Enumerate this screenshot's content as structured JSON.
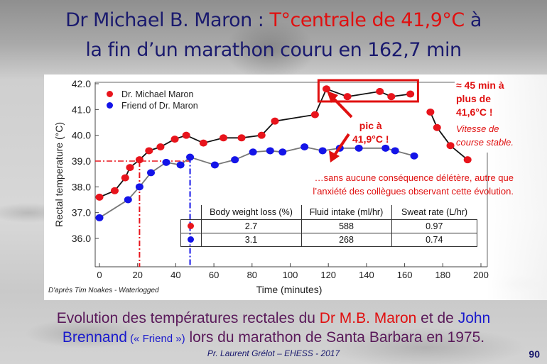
{
  "slide": {
    "title_part1": "Dr Michael B. Maron : ",
    "title_part2_red": "T°centrale de 41,9°C",
    "title_part3": " à",
    "title_line2": "la fin d’un marathon couru en 162,7 min",
    "caption_part1": "Evolution des températures rectales du ",
    "caption_red": "Dr M.B. Maron",
    "caption_part2": " et de ",
    "caption_blue1": "John",
    "caption_blue2": "Brennand",
    "caption_small": " (« Friend »)",
    "caption_part3": " lors du marathon de Santa Barbara en 1975.",
    "source": "D'après Tim Noakes - Waterlogged",
    "footer": "Pr. Laurent Grélot – EHESS - 2017",
    "page_number": "90"
  },
  "annotations": {
    "box_label_line1": "≈ 45 min à",
    "box_label_line2": "plus de",
    "box_label_line3": "41,6°C !",
    "box_label_line4": "Vitesse de",
    "box_label_line5": "course stable.",
    "peak_line1": "pic à",
    "peak_line2": "41,9°C !",
    "note_line1": "…sans aucune conséquence délétère, autre que",
    "note_line2": "l’anxiété des collègues observant cette évolution."
  },
  "table": {
    "headers": [
      "Body weight loss (%)",
      "Fluid intake (ml/hr)",
      "Sweat rate (L/hr)"
    ],
    "rows": [
      {
        "series": "Dr. Michael Maron",
        "color": "#e8141c",
        "values": [
          "2.7",
          "588",
          "0.97"
        ]
      },
      {
        "series": "Friend of Dr. Maron",
        "color": "#1414e8",
        "values": [
          "3.1",
          "268",
          "0.74"
        ]
      }
    ]
  },
  "colors": {
    "red": "#e8141c",
    "blue": "#1414e8",
    "title_navy": "#1a1a6e",
    "annot_red": "#e01010"
  },
  "chart_data": {
    "type": "line",
    "title": "",
    "xlabel": "Time (minutes)",
    "ylabel": "Rectal temperature (°C)",
    "xlim": [
      0,
      200
    ],
    "ylim": [
      35.0,
      42.0
    ],
    "xticks": [
      0,
      20,
      40,
      60,
      80,
      100,
      120,
      140,
      160,
      180,
      200
    ],
    "yticks": [
      36.0,
      37.0,
      38.0,
      39.0,
      40.0,
      41.0,
      42.0
    ],
    "ytick_labels": [
      "36.0",
      "37.0",
      "38.0",
      "39.0",
      "40.0",
      "41.0",
      "42.0"
    ],
    "grid": false,
    "legend_position": "upper left",
    "series": [
      {
        "name": "Dr. Michael Maron",
        "color": "#e8141c",
        "line_color": "#111111",
        "x": [
          0,
          8,
          13.5,
          16,
          21,
          26,
          32,
          39.5,
          45.5,
          54.5,
          65,
          74.5,
          85,
          92,
          113,
          119,
          130,
          147,
          153,
          163
        ],
        "y": [
          37.6,
          37.85,
          38.35,
          38.75,
          39.05,
          39.4,
          39.55,
          39.85,
          40.0,
          39.7,
          39.9,
          39.9,
          40.0,
          40.55,
          40.8,
          41.8,
          41.5,
          41.7,
          41.5,
          41.6
        ],
        "post_race_x": [
          173.5,
          177,
          184,
          193
        ],
        "post_race_y": [
          40.9,
          40.3,
          39.6,
          39.05
        ]
      },
      {
        "name": "Friend of Dr. Maron",
        "color": "#1414e8",
        "line_color": "#777777",
        "x": [
          0,
          15,
          21,
          27,
          35,
          42.5,
          47.5,
          60.5,
          71,
          80.5,
          89.5,
          96,
          107.5,
          117,
          126,
          136,
          150,
          155,
          165
        ],
        "y": [
          36.8,
          37.5,
          38.0,
          38.55,
          38.95,
          38.85,
          39.15,
          38.85,
          39.05,
          39.35,
          39.4,
          39.35,
          39.55,
          39.4,
          39.5,
          39.5,
          39.5,
          39.4,
          39.2
        ]
      }
    ],
    "reference_lines": [
      {
        "type": "horizontal",
        "y": 39.0,
        "x_to": 21,
        "color": "#e8141c",
        "style": "dash-dot"
      },
      {
        "type": "vertical",
        "x": 21,
        "color": "#e8141c",
        "style": "dash-dot"
      },
      {
        "type": "horizontal",
        "y": 39.0,
        "x_from": 21,
        "x_to": 47.5,
        "color": "#e8141c",
        "style": "dash-dot"
      },
      {
        "type": "vertical",
        "x": 47.5,
        "color": "#1414e8",
        "style": "dash-dot"
      }
    ],
    "highlight_box": {
      "x_from": 113,
      "x_to": 167,
      "y_from": 41.35,
      "y_to": 42.0,
      "color": "#e01010"
    }
  }
}
